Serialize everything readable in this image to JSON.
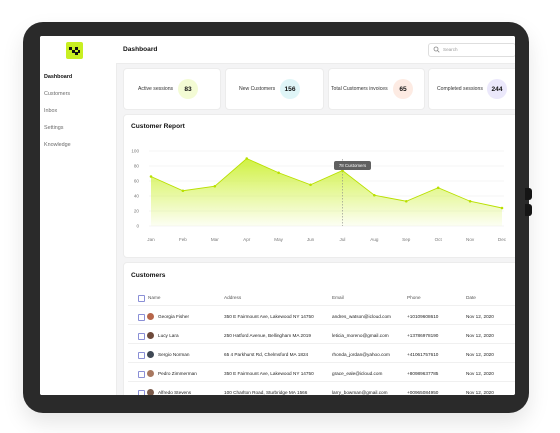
{
  "sidebar": {
    "items": [
      {
        "label": "Dashboard",
        "active": true
      },
      {
        "label": "Customers",
        "active": false
      },
      {
        "label": "Inbox",
        "active": false
      },
      {
        "label": "Settings",
        "active": false
      },
      {
        "label": "Knowledge",
        "active": false
      }
    ]
  },
  "header": {
    "title": "Dashboard",
    "search_placeholder": "Search"
  },
  "stats": [
    {
      "label": "Active sessions",
      "value": "83",
      "color": "#f3fbd4"
    },
    {
      "label": "New Customers",
      "value": "156",
      "color": "#dff5f7"
    },
    {
      "label": "Total Customers invoices",
      "value": "65",
      "color": "#fdebe3"
    },
    {
      "label": "Completed sessions",
      "value": "244",
      "color": "#ebe8fb"
    }
  ],
  "report": {
    "title": "Customer Report",
    "tooltip": "78 Customers"
  },
  "chart_data": {
    "type": "area",
    "categories": [
      "Jan",
      "Feb",
      "Mar",
      "Apr",
      "May",
      "Jun",
      "Jul",
      "Aug",
      "Sep",
      "Oct",
      "Nov",
      "Dec"
    ],
    "values": [
      66,
      47,
      53,
      90,
      71,
      55,
      74,
      41,
      33,
      51,
      33,
      24
    ],
    "ylim": [
      0,
      100
    ],
    "yticks": [
      "0",
      "20",
      "40",
      "60",
      "80",
      "100"
    ],
    "grid": true,
    "accent": "#c8ef22"
  },
  "customers": {
    "title": "Customers",
    "columns": [
      "Name",
      "Address",
      "Email",
      "Phone",
      "Date"
    ],
    "rows": [
      {
        "name": "Georgia Fisher",
        "address": "350 E Fairmount Ave, Lakewood NY 14750",
        "email": "andres_watson@icloud.com",
        "phone": "+10109608610",
        "date": "Nov 12, 2020",
        "avatar": "#b7664a"
      },
      {
        "name": "Lucy Lara",
        "address": "250 Hatford Avenue, Bellingham MA 2019",
        "email": "leticia_moreno@gmail.com",
        "phone": "+13786978190",
        "date": "Nov 12, 2020",
        "avatar": "#6e4a3b"
      },
      {
        "name": "Sergio Norman",
        "address": "65 4 Parkhurst Rd, Chelmsford MA 1824",
        "email": "rhonda_jordan@yahoo.com",
        "phone": "+41061757610",
        "date": "Nov 12, 2020",
        "avatar": "#3f4855"
      },
      {
        "name": "Pedro Zimmerman",
        "address": "350 E Fairmount Ave, Lakewood NY 14750",
        "email": "grace_eale@icloud.com",
        "phone": "+80989637785",
        "date": "Nov 12, 2020",
        "avatar": "#a87860"
      },
      {
        "name": "Alfredo Stevens",
        "address": "100 Charlton Road, Sturbridge MA 1566",
        "email": "larry_bowman@gmail.com",
        "phone": "+00965084950",
        "date": "Nov 12, 2020",
        "avatar": "#7a5a4a"
      }
    ]
  }
}
